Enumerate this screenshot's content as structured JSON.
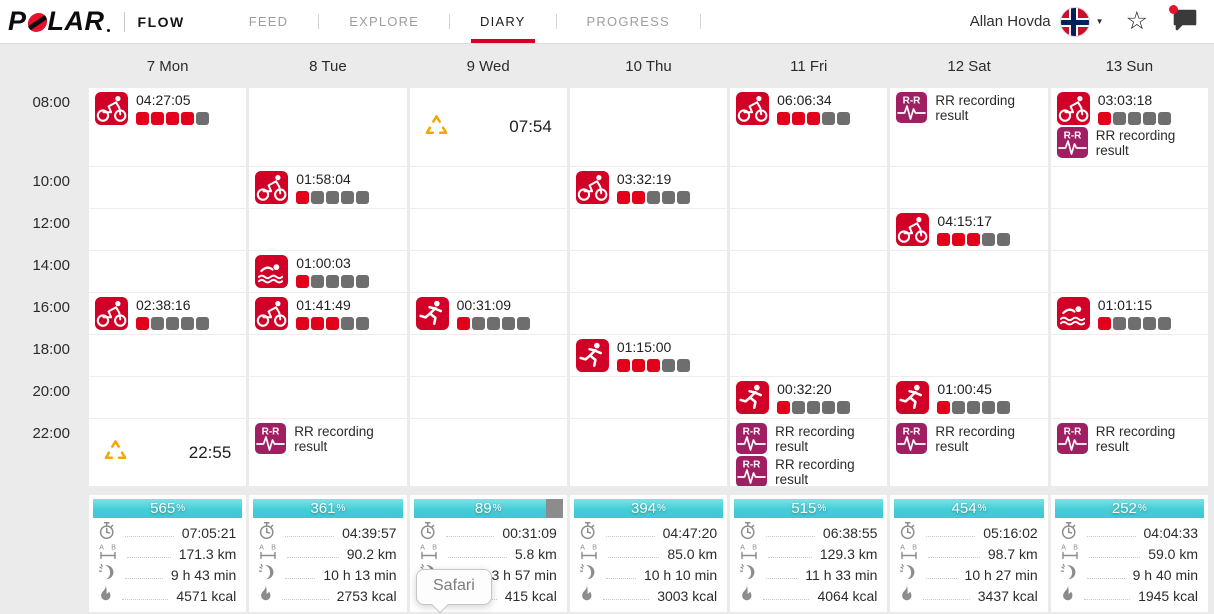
{
  "header": {
    "brand": {
      "logo_text": "POLAR",
      "product": "FLOW"
    },
    "nav": [
      {
        "label": "FEED",
        "active": false
      },
      {
        "label": "EXPLORE",
        "active": false
      },
      {
        "label": "DIARY",
        "active": true
      },
      {
        "label": "PROGRESS",
        "active": false
      }
    ],
    "user_name": "Allan Hovda",
    "icons": [
      "avatar",
      "caret-down-icon",
      "star-icon",
      "chat-icon",
      "notification-dot"
    ]
  },
  "colors": {
    "brand_red": "#d10027",
    "feedback_red": "#e2001a",
    "feedback_gray": "#6e6e6e",
    "rr_purple": "#a01f63",
    "bar_cyan": "#45cdd6",
    "bar_gray": "#8c8c8c",
    "event_orange": "#f7a600"
  },
  "calendar": {
    "time_labels": [
      "08:00",
      "10:00",
      "12:00",
      "14:00",
      "16:00",
      "18:00",
      "20:00",
      "22:00"
    ],
    "rr_label": "RR recording result",
    "feedback_total": 5,
    "days": [
      {
        "label": "7 Mon",
        "entries": [
          {
            "slot": 0,
            "type": "sport",
            "sport": "cycling",
            "duration": "04:27:05",
            "feedback": 4
          },
          {
            "slot": 4,
            "type": "sport",
            "sport": "cycling",
            "duration": "02:38:16",
            "feedback": 1
          },
          {
            "slot": 7,
            "type": "event",
            "time": "22:55"
          }
        ],
        "summary": {
          "percent": "565",
          "duration": "07:05:21",
          "distance": "171.3 km",
          "active_time": "9 h 43 min",
          "calories": "4571 kcal"
        }
      },
      {
        "label": "8 Tue",
        "entries": [
          {
            "slot": 1,
            "type": "sport",
            "sport": "cycling",
            "duration": "01:58:04",
            "feedback": 1
          },
          {
            "slot": 3,
            "type": "sport",
            "sport": "swimming",
            "duration": "01:00:03",
            "feedback": 1
          },
          {
            "slot": 4,
            "type": "sport",
            "sport": "cycling",
            "duration": "01:41:49",
            "feedback": 3
          },
          {
            "slot": 7,
            "type": "rr"
          }
        ],
        "summary": {
          "percent": "361",
          "duration": "04:39:57",
          "distance": "90.2 km",
          "active_time": "10 h 13 min",
          "calories": "2753 kcal"
        }
      },
      {
        "label": "9 Wed",
        "entries": [
          {
            "slot": 0,
            "type": "event",
            "time": "07:54"
          },
          {
            "slot": 4,
            "type": "sport",
            "sport": "running",
            "duration": "00:31:09",
            "feedback": 1
          }
        ],
        "summary": {
          "percent": "89",
          "duration": "00:31:09",
          "distance": "5.8 km",
          "active_time": "3 h 57 min",
          "calories": "415 kcal"
        }
      },
      {
        "label": "10 Thu",
        "entries": [
          {
            "slot": 1,
            "type": "sport",
            "sport": "cycling",
            "duration": "03:32:19",
            "feedback": 2
          },
          {
            "slot": 5,
            "type": "sport",
            "sport": "running",
            "duration": "01:15:00",
            "feedback": 3
          }
        ],
        "summary": {
          "percent": "394",
          "duration": "04:47:20",
          "distance": "85.0 km",
          "active_time": "10 h 10 min",
          "calories": "3003 kcal"
        }
      },
      {
        "label": "11 Fri",
        "entries": [
          {
            "slot": 0,
            "type": "sport",
            "sport": "cycling",
            "duration": "06:06:34",
            "feedback": 3
          },
          {
            "slot": 6,
            "type": "sport",
            "sport": "running",
            "duration": "00:32:20",
            "feedback": 1
          },
          {
            "slot": 7,
            "type": "rr"
          },
          {
            "slot": 7,
            "type": "rr"
          }
        ],
        "summary": {
          "percent": "515",
          "duration": "06:38:55",
          "distance": "129.3 km",
          "active_time": "11 h 33 min",
          "calories": "4064 kcal"
        }
      },
      {
        "label": "12 Sat",
        "entries": [
          {
            "slot": 0,
            "type": "rr"
          },
          {
            "slot": 2,
            "type": "sport",
            "sport": "cycling",
            "duration": "04:15:17",
            "feedback": 3
          },
          {
            "slot": 6,
            "type": "sport",
            "sport": "running",
            "duration": "01:00:45",
            "feedback": 1
          },
          {
            "slot": 7,
            "type": "rr"
          }
        ],
        "summary": {
          "percent": "454",
          "duration": "05:16:02",
          "distance": "98.7 km",
          "active_time": "10 h 27 min",
          "calories": "3437 kcal"
        }
      },
      {
        "label": "13 Sun",
        "entries": [
          {
            "slot": 0,
            "type": "sport",
            "sport": "cycling",
            "duration": "03:03:18",
            "feedback": 1
          },
          {
            "slot": 0,
            "type": "rr"
          },
          {
            "slot": 4,
            "type": "sport",
            "sport": "swimming",
            "duration": "01:01:15",
            "feedback": 1
          },
          {
            "slot": 7,
            "type": "rr"
          }
        ],
        "summary": {
          "percent": "252",
          "duration": "04:04:33",
          "distance": "59.0 km",
          "active_time": "9 h 40 min",
          "calories": "1945 kcal"
        }
      }
    ]
  },
  "tooltip": {
    "text": "Safari"
  }
}
